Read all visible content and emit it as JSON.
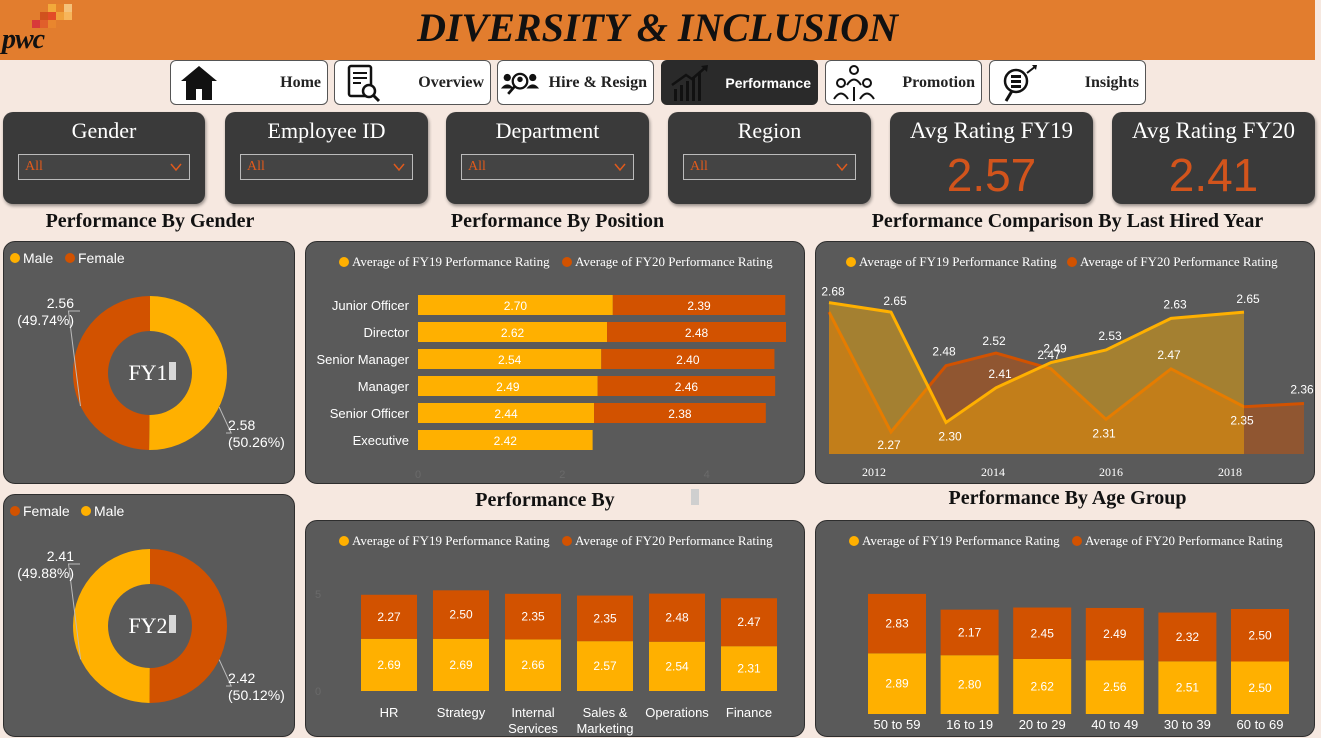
{
  "app": {
    "title": "DIVERSITY & INCLUSION",
    "logo_text": "pwc"
  },
  "colors": {
    "fy19": "#ffb000",
    "fy20": "#d25200",
    "panel": "#5a5a5a",
    "header": "#e27d2e",
    "kpi_value": "#d2541c"
  },
  "nav": [
    {
      "label": "Home",
      "icon": "home-icon",
      "active": false
    },
    {
      "label": "Overview",
      "icon": "document-search-icon",
      "active": false
    },
    {
      "label": "Hire & Resign",
      "icon": "people-search-icon",
      "active": false
    },
    {
      "label": "Performance",
      "icon": "bar-growth-icon",
      "active": true
    },
    {
      "label": "Promotion",
      "icon": "people-promotion-icon",
      "active": false
    },
    {
      "label": "Insights",
      "icon": "insight-magnifier-icon",
      "active": false
    }
  ],
  "filters": [
    {
      "title": "Gender",
      "value": "All"
    },
    {
      "title": "Employee ID",
      "value": "All"
    },
    {
      "title": "Department",
      "value": "All"
    },
    {
      "title": "Region",
      "value": "All"
    }
  ],
  "kpis": [
    {
      "title": "Avg Rating FY19",
      "value": "2.57"
    },
    {
      "title": "Avg Rating FY20",
      "value": "2.41"
    }
  ],
  "sections": {
    "gender": "Performance By Gender",
    "position": "Performance By Position",
    "hired_year": "Performance Comparison By Last Hired Year",
    "department": "Performance By",
    "age": "Performance By Age Group"
  },
  "chart_data": [
    {
      "id": "gender_fy19",
      "type": "pie",
      "center_label": "FY1",
      "legend": [
        "Male",
        "Female"
      ],
      "slices": [
        {
          "name": "Male",
          "value": 2.58,
          "label": "2.58",
          "pct": "(50.26%)"
        },
        {
          "name": "Female",
          "value": 2.56,
          "label": "2.56",
          "pct": "(49.74%)"
        }
      ]
    },
    {
      "id": "gender_fy20",
      "type": "pie",
      "center_label": "FY2",
      "legend": [
        "Female",
        "Male"
      ],
      "slices": [
        {
          "name": "Female",
          "value": 2.42,
          "label": "2.42",
          "pct": "(50.12%)"
        },
        {
          "name": "Male",
          "value": 2.41,
          "label": "2.41",
          "pct": "(49.88%)"
        }
      ]
    },
    {
      "id": "position",
      "type": "bar",
      "orientation": "horizontal-stacked",
      "categories": [
        "Junior Officer",
        "Director",
        "Senior Manager",
        "Manager",
        "Senior Officer",
        "Executive"
      ],
      "series": [
        {
          "name": "Average of FY19 Performance Rating",
          "values": [
            2.7,
            2.62,
            2.54,
            2.49,
            2.44,
            2.42
          ]
        },
        {
          "name": "Average of FY20 Performance Rating",
          "values": [
            2.39,
            2.48,
            2.4,
            2.46,
            2.38,
            null
          ]
        }
      ],
      "xlim": [
        0,
        5.1
      ],
      "xticks": [
        "0",
        "2",
        "4"
      ]
    },
    {
      "id": "hired_year",
      "type": "area",
      "x": [
        2011,
        2012,
        2013,
        2014,
        2015,
        2016,
        2017,
        2018,
        2019
      ],
      "xticks": [
        "2012",
        "2014",
        "2016",
        "2018"
      ],
      "series": [
        {
          "name": "Average of FY19 Performance Rating",
          "values": [
            2.68,
            2.65,
            2.3,
            2.41,
            2.49,
            2.53,
            2.63,
            2.65,
            null
          ],
          "labels": [
            "2.68",
            "2.65",
            "2.30",
            "2.41",
            "2.49",
            "2.53",
            "2.63",
            "2.65",
            ""
          ]
        },
        {
          "name": "Average of FY20 Performance Rating",
          "values": [
            2.65,
            2.27,
            2.48,
            2.52,
            2.47,
            2.31,
            2.47,
            2.35,
            2.36
          ],
          "labels": [
            "",
            "2.27",
            "2.48",
            "2.52",
            "2.47",
            "2.31",
            "2.47",
            "2.35",
            "2.36"
          ]
        }
      ],
      "ylim": [
        2.2,
        2.72
      ]
    },
    {
      "id": "department",
      "type": "bar",
      "orientation": "vertical-stacked",
      "categories": [
        "HR",
        "Strategy",
        "Internal Services",
        "Sales & Marketing",
        "Operations",
        "Finance"
      ],
      "category_lines": [
        [
          "HR"
        ],
        [
          "Strategy"
        ],
        [
          "Internal",
          "Services"
        ],
        [
          "Sales &",
          "Marketing"
        ],
        [
          "Operations"
        ],
        [
          "Finance"
        ]
      ],
      "series": [
        {
          "name": "Average of FY19 Performance Rating",
          "values": [
            2.69,
            2.69,
            2.66,
            2.57,
            2.54,
            2.31
          ]
        },
        {
          "name": "Average of FY20 Performance Rating",
          "values": [
            2.27,
            2.5,
            2.35,
            2.35,
            2.48,
            2.47
          ]
        }
      ],
      "ylim": [
        0,
        5.6
      ],
      "yticks": [
        "0",
        "5"
      ]
    },
    {
      "id": "age_group",
      "type": "bar",
      "orientation": "vertical-stacked",
      "categories": [
        "50 to 59",
        "16 to 19",
        "20 to 29",
        "40 to 49",
        "30 to 39",
        "60 to 69"
      ],
      "series": [
        {
          "name": "Average of FY19 Performance Rating",
          "values": [
            2.89,
            2.8,
            2.62,
            2.56,
            2.51,
            2.5
          ]
        },
        {
          "name": "Average of FY20 Performance Rating",
          "values": [
            2.83,
            2.17,
            2.45,
            2.49,
            2.32,
            2.5
          ]
        }
      ],
      "ylim": [
        0,
        5.9
      ]
    }
  ]
}
